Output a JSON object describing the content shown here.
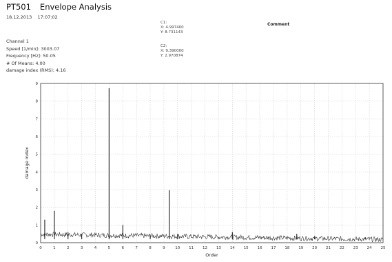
{
  "header": {
    "id": "PT501",
    "title": "Envelope Analysis",
    "date": "18.12.2013",
    "time": "17:07:02"
  },
  "info": {
    "channel": "Channel 1",
    "speed": "Speed [1/min]: 3003.07",
    "frequency": "Frequency [Hz]: 50.05",
    "means": "# Of Means: 4.00",
    "damage": "damage index (RMS): 4.16"
  },
  "cursors": {
    "c1_label": "C1:",
    "c1_x": "X: 4.997400",
    "c1_y": "Y: 8.731143",
    "c2_label": "C2:",
    "c2_x": "X: 9.390000",
    "c2_y": "Y: 2.970874"
  },
  "comment": {
    "label": "Comment"
  },
  "chart_data": {
    "type": "line",
    "xlabel": "Order",
    "ylabel": "damage index",
    "xlim": [
      0,
      25
    ],
    "ylim": [
      0,
      9
    ],
    "x_ticks": [
      0,
      1,
      2,
      3,
      4,
      5,
      6,
      7,
      8,
      9,
      10,
      11,
      12,
      13,
      14,
      15,
      16,
      17,
      18,
      19,
      20,
      21,
      22,
      23,
      24,
      25
    ],
    "y_ticks": [
      0,
      1,
      2,
      3,
      4,
      5,
      6,
      7,
      8,
      9
    ],
    "grid": true,
    "series": [
      {
        "color": "#1a1a1a",
        "peaks": [
          {
            "x": 0.3,
            "y": 1.3
          },
          {
            "x": 1.0,
            "y": 1.8
          },
          {
            "x": 2.0,
            "y": 0.6
          },
          {
            "x": 3.0,
            "y": 0.5
          },
          {
            "x": 4.997,
            "y": 8.73
          },
          {
            "x": 6.0,
            "y": 1.0
          },
          {
            "x": 8.0,
            "y": 0.45
          },
          {
            "x": 9.39,
            "y": 2.97
          },
          {
            "x": 10.0,
            "y": 0.5
          },
          {
            "x": 14.0,
            "y": 0.6
          },
          {
            "x": 18.7,
            "y": 0.5
          },
          {
            "x": 20.0,
            "y": 0.3
          },
          {
            "x": 23.7,
            "y": 0.3
          }
        ]
      }
    ]
  }
}
